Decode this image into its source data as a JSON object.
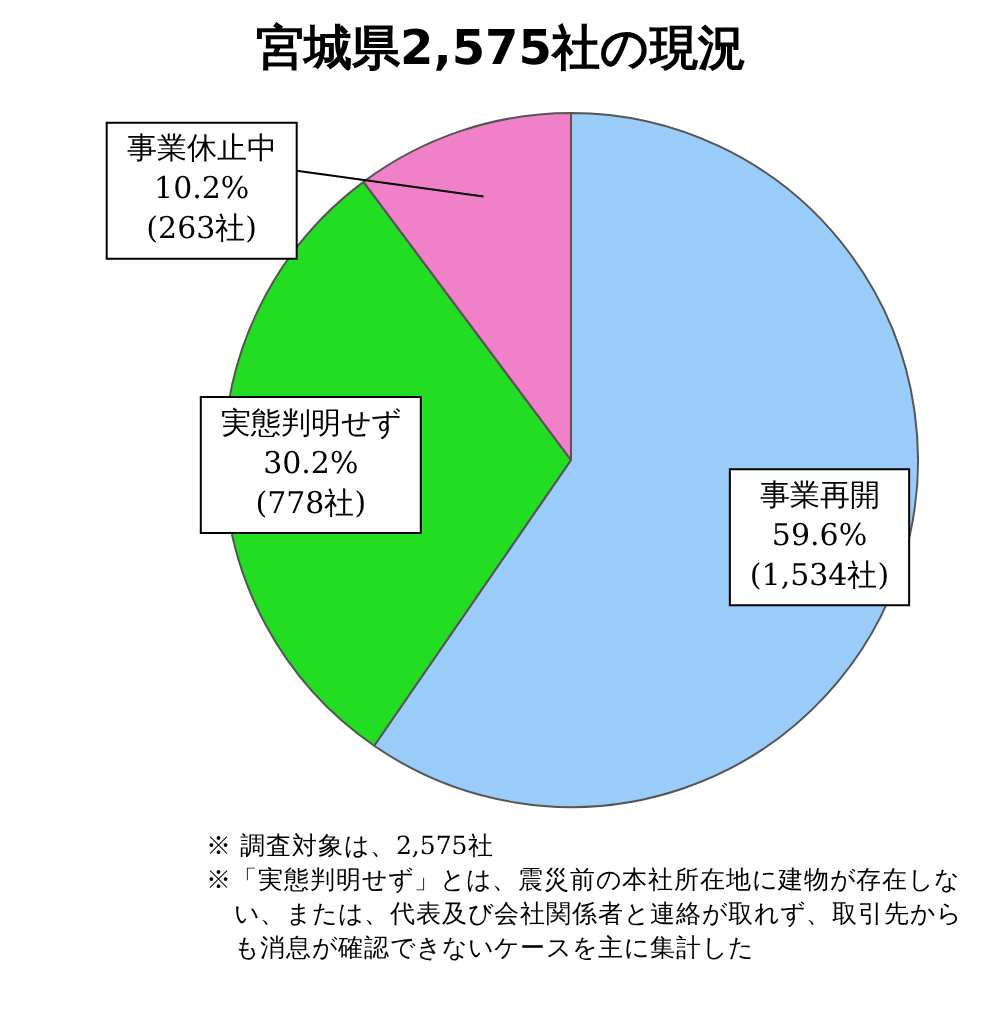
{
  "chart_data": {
    "type": "pie",
    "title": "宮城県2,575社の現況",
    "categories": [
      "事業再開",
      "実態判明せず",
      "事業休止中"
    ],
    "values": [
      59.6,
      30.2,
      10.2
    ],
    "colors": [
      "#99ccf8",
      "#22dd22",
      "#f080c8"
    ],
    "value_labels": [
      "59.6%\n(1,534社)",
      "30.2%\n(778社)",
      "10.2%\n(263社)"
    ],
    "legend": false,
    "annotations": [
      "※ 調査対象は、2,575社",
      "※「実態判明せず」とは、震災前の本社所在地に建物が存在しない、または、代表及び会社関係者と連絡が取れず、取引先からも消息が確認できないケースを主に集計した"
    ]
  }
}
